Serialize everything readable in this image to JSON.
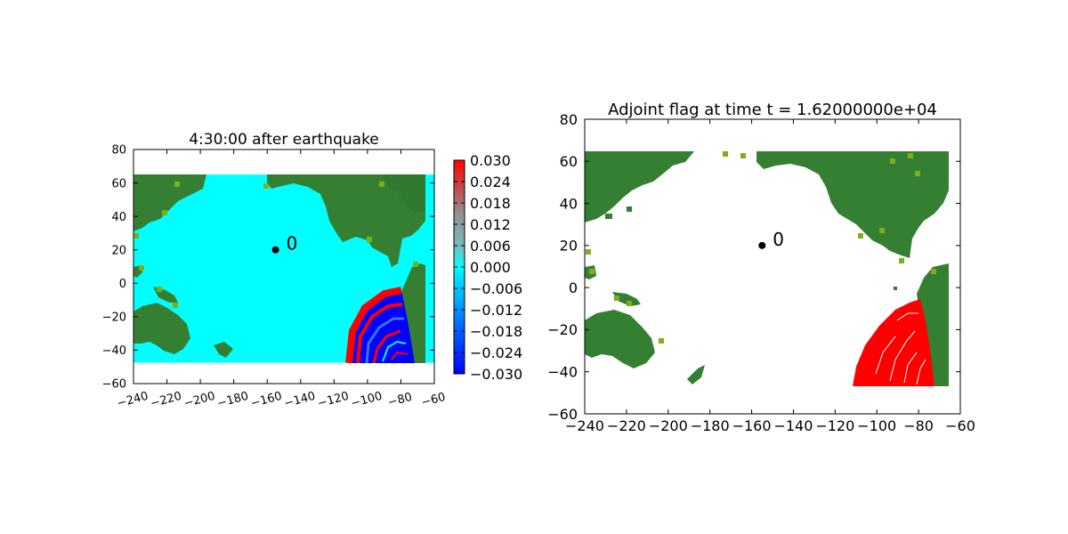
{
  "colors": {
    "ocean": "#00ffff",
    "land": "#357f33",
    "coast": "#7fae1b",
    "flag": "#ff0000",
    "gauge": "#000000"
  },
  "chart_data": [
    {
      "type": "heatmap",
      "title": "4:30:00 after earthquake",
      "xlim": [
        -240,
        -60
      ],
      "ylim": [
        -60,
        80
      ],
      "xticks": [
        -240,
        -220,
        -200,
        -180,
        -160,
        -140,
        -120,
        -100,
        -80,
        -60
      ],
      "yticks": [
        -60,
        -40,
        -20,
        0,
        20,
        40,
        60,
        80
      ],
      "domain_extent": {
        "x": [
          -240,
          -60
        ],
        "y": [
          -47.5,
          65
        ]
      },
      "gauge": {
        "label": "0",
        "x": -155,
        "y": 20
      },
      "colorbar": {
        "min": -0.03,
        "max": 0.03,
        "colormap": "cyan-centered diverging (blue to red)",
        "tick_labels": [
          "0.030",
          "0.024",
          "0.018",
          "0.012",
          "0.006",
          "0.000",
          "−0.006",
          "−0.012",
          "−0.018",
          "−0.024",
          "−0.030"
        ]
      },
      "legend": "none",
      "grid": false
    },
    {
      "type": "heatmap",
      "title": "Adjoint flag at time t = 1.62000000e+04",
      "xlim": [
        -240,
        -60
      ],
      "ylim": [
        -60,
        80
      ],
      "xticks": [
        -240,
        -220,
        -200,
        -180,
        -160,
        -140,
        -120,
        -100,
        -80,
        -60
      ],
      "yticks": [
        -60,
        -40,
        -20,
        0,
        20,
        40,
        60,
        80
      ],
      "domain_extent": {
        "x": [
          -240,
          -65
        ],
        "y": [
          -47.5,
          65
        ]
      },
      "gauge": {
        "label": "0",
        "x": -155,
        "y": 20
      },
      "legend": "none",
      "grid": false
    }
  ]
}
